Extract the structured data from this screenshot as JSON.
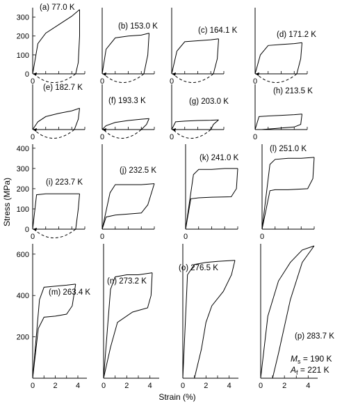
{
  "figure": {
    "ylabel": "Stress (MPa)",
    "xlabel": "Strain (%)",
    "annotation_ms_sym": "M",
    "annotation_ms_sub": "s",
    "annotation_ms_val": " = 190 K",
    "annotation_at_sym": "A",
    "annotation_at_sub": "f",
    "annotation_at_val": " = 221 K"
  },
  "chart_data": [
    {
      "type": "line",
      "panel": "a",
      "label": "(a) 77.0 K",
      "xlim": [
        0,
        4
      ],
      "ylim": [
        0,
        350
      ],
      "yticks": [
        0,
        100,
        200,
        300
      ],
      "series": [
        {
          "loading": [
            [
              0,
              0
            ],
            [
              0.4,
              160
            ],
            [
              1,
              215
            ],
            [
              2,
              260
            ],
            [
              3,
              305
            ],
            [
              3.6,
              340
            ]
          ],
          "unloading": [
            [
              3.6,
              340
            ],
            [
              3.6,
              200
            ],
            [
              3.5,
              60
            ],
            [
              3.3,
              0
            ]
          ],
          "recovery": [
            [
              3.3,
              0
            ],
            [
              2.5,
              -25
            ],
            [
              1.5,
              -30
            ],
            [
              0,
              0
            ]
          ]
        }
      ]
    },
    {
      "type": "line",
      "panel": "b",
      "label": "(b) 153.0 K",
      "xlim": [
        0,
        4
      ],
      "ylim": [
        0,
        350
      ],
      "series": [
        {
          "loading": [
            [
              0,
              0
            ],
            [
              0.3,
              130
            ],
            [
              1,
              190
            ],
            [
              2,
              200
            ],
            [
              3,
              205
            ],
            [
              3.6,
              215
            ]
          ],
          "unloading": [
            [
              3.6,
              215
            ],
            [
              3.5,
              100
            ],
            [
              3.2,
              0
            ]
          ],
          "recovery": [
            [
              3.2,
              0
            ],
            [
              2,
              -30
            ],
            [
              0,
              0
            ]
          ]
        }
      ]
    },
    {
      "type": "line",
      "panel": "c",
      "label": "(c) 164.1 K",
      "xlim": [
        0,
        4
      ],
      "ylim": [
        0,
        350
      ],
      "series": [
        {
          "loading": [
            [
              0,
              0
            ],
            [
              0.4,
              120
            ],
            [
              1,
              170
            ],
            [
              2,
              175
            ],
            [
              3,
              180
            ],
            [
              3.6,
              185
            ]
          ],
          "unloading": [
            [
              3.6,
              185
            ],
            [
              3.5,
              80
            ],
            [
              3.2,
              0
            ]
          ],
          "recovery": [
            [
              3.2,
              0
            ],
            [
              2,
              -30
            ],
            [
              0,
              0
            ]
          ]
        }
      ]
    },
    {
      "type": "line",
      "panel": "d",
      "label": "(d) 171.2 K",
      "xlim": [
        0,
        4
      ],
      "ylim": [
        0,
        350
      ],
      "series": [
        {
          "loading": [
            [
              0,
              0
            ],
            [
              0.4,
              100
            ],
            [
              1,
              150
            ],
            [
              2,
              155
            ],
            [
              3,
              160
            ],
            [
              3.6,
              165
            ]
          ],
          "unloading": [
            [
              3.6,
              165
            ],
            [
              3.5,
              80
            ],
            [
              3.2,
              0
            ]
          ],
          "recovery": [
            [
              3.2,
              0
            ],
            [
              2,
              -25
            ],
            [
              0,
              0
            ]
          ]
        }
      ]
    },
    {
      "type": "line",
      "panel": "e",
      "label": "(e) 182.7 K",
      "xlim": [
        0,
        4
      ],
      "ylim": [
        0,
        350
      ],
      "series": [
        {
          "loading": [
            [
              0,
              0
            ],
            [
              0.4,
              60
            ],
            [
              1,
              100
            ],
            [
              2,
              125
            ],
            [
              3,
              145
            ],
            [
              3.6,
              165
            ]
          ],
          "unloading": [
            [
              3.6,
              165
            ],
            [
              3.5,
              80
            ],
            [
              3.2,
              0
            ]
          ],
          "recovery": [
            [
              3.2,
              0
            ],
            [
              2,
              -35
            ],
            [
              0,
              0
            ]
          ]
        }
      ]
    },
    {
      "type": "line",
      "panel": "f",
      "label": "(f) 193.3 K",
      "xlim": [
        0,
        4
      ],
      "ylim": [
        0,
        350
      ],
      "series": [
        {
          "loading": [
            [
              0,
              0
            ],
            [
              0.3,
              30
            ],
            [
              1,
              55
            ],
            [
              2,
              70
            ],
            [
              3,
              80
            ],
            [
              3.6,
              85
            ]
          ],
          "unloading": [
            [
              3.6,
              85
            ],
            [
              3.4,
              40
            ],
            [
              3,
              0
            ]
          ],
          "recovery": [
            [
              3,
              0
            ],
            [
              2,
              -15
            ],
            [
              0,
              0
            ]
          ]
        }
      ]
    },
    {
      "type": "line",
      "panel": "g",
      "label": "(g) 203.0 K",
      "xlim": [
        0,
        4
      ],
      "ylim": [
        0,
        350
      ],
      "series": [
        {
          "loading": [
            [
              0,
              0
            ],
            [
              0.3,
              60
            ],
            [
              1,
              65
            ],
            [
              2,
              70
            ],
            [
              3,
              72
            ],
            [
              3.6,
              75
            ]
          ],
          "unloading": [
            [
              3.6,
              75
            ],
            [
              3.2,
              40
            ],
            [
              3,
              0
            ]
          ],
          "recovery": [
            [
              3,
              0
            ],
            [
              2,
              -15
            ],
            [
              0,
              0
            ]
          ]
        }
      ]
    },
    {
      "type": "line",
      "panel": "h",
      "label": "(h) 213.5 K",
      "xlim": [
        0,
        4
      ],
      "ylim": [
        0,
        350
      ],
      "series": [
        {
          "loading": [
            [
              0,
              0
            ],
            [
              0.3,
              100
            ],
            [
              1,
              105
            ],
            [
              2,
              110
            ],
            [
              3,
              115
            ],
            [
              3.6,
              120
            ]
          ],
          "unloading": [
            [
              3.6,
              120
            ],
            [
              3.5,
              40
            ],
            [
              3,
              20
            ],
            [
              0.5,
              0
            ]
          ],
          "recovery": []
        }
      ]
    },
    {
      "type": "line",
      "panel": "i",
      "label": "(i) 223.7 K",
      "xlim": [
        0,
        4
      ],
      "ylim": [
        0,
        420
      ],
      "yticks": [
        0,
        100,
        200,
        300,
        400
      ],
      "series": [
        {
          "loading": [
            [
              0,
              0
            ],
            [
              0.3,
              170
            ],
            [
              1,
              175
            ],
            [
              2,
              175
            ],
            [
              3,
              175
            ],
            [
              3.6,
              175
            ]
          ],
          "unloading": [
            [
              3.6,
              175
            ],
            [
              3.5,
              100
            ],
            [
              3.3,
              0
            ]
          ],
          "recovery": [
            [
              3.3,
              0
            ],
            [
              2,
              -30
            ],
            [
              0,
              0
            ]
          ]
        }
      ]
    },
    {
      "type": "line",
      "panel": "j",
      "label": "(j) 232.5 K",
      "xlim": [
        0,
        4
      ],
      "ylim": [
        0,
        420
      ],
      "series": [
        {
          "loading": [
            [
              0,
              0
            ],
            [
              0.6,
              180
            ],
            [
              1,
              220
            ],
            [
              2,
              220
            ],
            [
              3,
              220
            ],
            [
              4,
              225
            ]
          ],
          "unloading": [
            [
              4,
              225
            ],
            [
              3.5,
              120
            ],
            [
              3,
              80
            ],
            [
              2,
              75
            ],
            [
              1,
              70
            ],
            [
              0.3,
              60
            ],
            [
              0,
              0
            ]
          ]
        }
      ]
    },
    {
      "type": "line",
      "panel": "k",
      "label": "(k) 241.0 K",
      "xlim": [
        0,
        4
      ],
      "ylim": [
        0,
        420
      ],
      "series": [
        {
          "loading": [
            [
              0,
              0
            ],
            [
              0.6,
              270
            ],
            [
              1,
              295
            ],
            [
              2,
              295
            ],
            [
              3,
              300
            ],
            [
              4,
              300
            ]
          ],
          "unloading": [
            [
              4,
              300
            ],
            [
              3.9,
              200
            ],
            [
              3.5,
              160
            ],
            [
              2,
              158
            ],
            [
              1,
              155
            ],
            [
              0.4,
              150
            ],
            [
              0,
              0
            ]
          ]
        }
      ]
    },
    {
      "type": "line",
      "panel": "l",
      "label": "(l) 251.0 K",
      "xlim": [
        0,
        4
      ],
      "ylim": [
        0,
        420
      ],
      "series": [
        {
          "loading": [
            [
              0,
              0
            ],
            [
              0.6,
              320
            ],
            [
              1,
              345
            ],
            [
              2,
              350
            ],
            [
              3,
              350
            ],
            [
              4,
              355
            ]
          ],
          "unloading": [
            [
              4,
              355
            ],
            [
              3.9,
              250
            ],
            [
              3.5,
              200
            ],
            [
              2,
              195
            ],
            [
              1,
              195
            ],
            [
              0.6,
              190
            ],
            [
              0,
              0
            ]
          ]
        }
      ]
    },
    {
      "type": "line",
      "panel": "m",
      "label": "(m) 263.4 K",
      "xlim": [
        0,
        4.8
      ],
      "ylim": [
        0,
        650
      ],
      "xticks": [
        0,
        2,
        4
      ],
      "yticks": [
        200,
        400,
        600
      ],
      "series": [
        {
          "loading": [
            [
              0,
              0
            ],
            [
              0.6,
              380
            ],
            [
              1,
              440
            ],
            [
              2,
              445
            ],
            [
              3,
              450
            ],
            [
              3.8,
              455
            ]
          ],
          "unloading": [
            [
              3.8,
              455
            ],
            [
              3.5,
              350
            ],
            [
              3,
              310
            ],
            [
              2,
              300
            ],
            [
              1,
              295
            ],
            [
              0.5,
              240
            ],
            [
              0,
              0
            ]
          ]
        }
      ]
    },
    {
      "type": "line",
      "panel": "n",
      "label": "(n) 273.2 K",
      "xlim": [
        0,
        4.8
      ],
      "ylim": [
        0,
        650
      ],
      "xticks": [
        0,
        2,
        4
      ],
      "series": [
        {
          "loading": [
            [
              0,
              0
            ],
            [
              0.6,
              430
            ],
            [
              1,
              490
            ],
            [
              2,
              500
            ],
            [
              3,
              500
            ],
            [
              4.2,
              510
            ]
          ],
          "unloading": [
            [
              4.2,
              510
            ],
            [
              4.1,
              400
            ],
            [
              3.8,
              340
            ],
            [
              2.5,
              320
            ],
            [
              1.2,
              270
            ],
            [
              0.6,
              150
            ],
            [
              0,
              0
            ]
          ]
        }
      ]
    },
    {
      "type": "line",
      "panel": "o",
      "label": "(o) 276.5 K",
      "xlim": [
        0,
        4.8
      ],
      "ylim": [
        0,
        650
      ],
      "xticks": [
        0,
        2,
        4
      ],
      "series": [
        {
          "loading": [
            [
              0,
              0
            ],
            [
              0.4,
              500
            ],
            [
              1,
              550
            ],
            [
              2,
              560
            ],
            [
              3,
              565
            ],
            [
              4.5,
              570
            ]
          ],
          "unloading": [
            [
              4.5,
              570
            ],
            [
              4.2,
              500
            ],
            [
              3.5,
              420
            ],
            [
              2.5,
              350
            ],
            [
              2,
              270
            ],
            [
              1.6,
              140
            ],
            [
              1,
              0
            ]
          ]
        }
      ]
    },
    {
      "type": "line",
      "panel": "p",
      "label": "(p) 283.7 K",
      "xlim": [
        0,
        4.8
      ],
      "ylim": [
        0,
        650
      ],
      "xticks": [
        0,
        2,
        4
      ],
      "series": [
        {
          "loading": [
            [
              0,
              0
            ],
            [
              0.6,
              300
            ],
            [
              1.5,
              470
            ],
            [
              2.5,
              560
            ],
            [
              3.5,
              620
            ],
            [
              4.5,
              640
            ]
          ],
          "unloading": [
            [
              4.5,
              640
            ],
            [
              3.5,
              560
            ],
            [
              2.5,
              380
            ],
            [
              1.5,
              120
            ],
            [
              1,
              0
            ]
          ]
        }
      ]
    }
  ]
}
